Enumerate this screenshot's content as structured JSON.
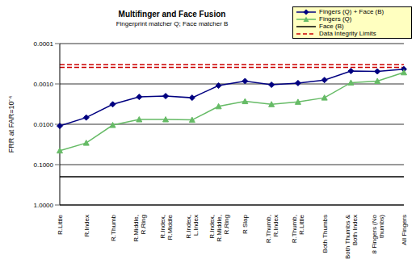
{
  "chart_data": {
    "type": "line",
    "title": "Multifinger and Face Fusion",
    "subtitle": "Fingerprint matcher Q; Face matcher B",
    "y_label": "FRR at FAR=10⁻⁴",
    "log": "y",
    "grid": true,
    "legend": "top-right",
    "categories": [
      "R.Little",
      "R.Index",
      "R.Thumb",
      "R.Middle, R.Ring",
      "R.Index, R.Middle",
      "R.Index, L.Index",
      "R.Index, R.Middle, R.Ring",
      "R Slap",
      "R.Thumb, R.Index",
      "R.Thumb, R.Little",
      "Both Thumbs",
      "Both Thumbs & Both Index",
      "8 Fingers (No thumbs)",
      "All Fingers"
    ],
    "ylim": [
      0.0001,
      1
    ],
    "yticks": [
      0.0001,
      {
        "value": 0.001,
        "label": "0.0010"
      },
      {
        "value": 0.01,
        "label": "0.0100"
      },
      {
        "value": 0.1,
        "label": "0.1000"
      },
      {
        "value": 1,
        "label": "1.0000"
      }
    ],
    "series": [
      {
        "name": "Fingers (Q) + Face (B)",
        "color": "#000080",
        "marker": "diamond",
        "line_style": "solid",
        "values": [
          0.011,
          0.0068,
          0.0032,
          0.0021,
          0.002,
          0.0022,
          0.0011,
          0.00085,
          0.00105,
          0.00095,
          0.0008,
          0.00048,
          0.00049,
          0.00043
        ]
      },
      {
        "name": "Fingers (Q)",
        "color": "#66bb66",
        "marker": "triangle",
        "line_style": "solid",
        "values": [
          0.045,
          0.029,
          0.0105,
          0.0076,
          0.0076,
          0.0078,
          0.0036,
          0.0027,
          0.0032,
          0.0028,
          0.0022,
          0.00093,
          0.00085,
          0.00052
        ]
      },
      {
        "name": "Face (B)",
        "color": "#000000",
        "marker": "none",
        "line_style": "solid",
        "values": [
          0.2,
          0.2,
          0.2,
          0.2,
          0.2,
          0.2,
          0.2,
          0.2,
          0.2,
          0.2,
          0.2,
          0.2,
          0.2,
          0.2
        ]
      },
      {
        "name": "Data Integrity Limits",
        "color": "#cc0000",
        "marker": "none",
        "line_style": "dashed",
        "values": [
          0.00033,
          0.00033,
          0.00033,
          0.00033,
          0.00033,
          0.00033,
          0.00033,
          0.00033,
          0.00033,
          0.00033,
          0.00033,
          0.00033,
          0.00033,
          0.00033
        ]
      },
      {
        "name": "Data Integrity Limits",
        "color": "#cc0000",
        "marker": "none",
        "line_style": "dashed",
        "values": [
          0.00039,
          0.00039,
          0.00039,
          0.00039,
          0.00039,
          0.00039,
          0.00039,
          0.00039,
          0.00039,
          0.00039,
          0.00039,
          0.00039,
          0.00039,
          0.00039
        ]
      }
    ]
  }
}
